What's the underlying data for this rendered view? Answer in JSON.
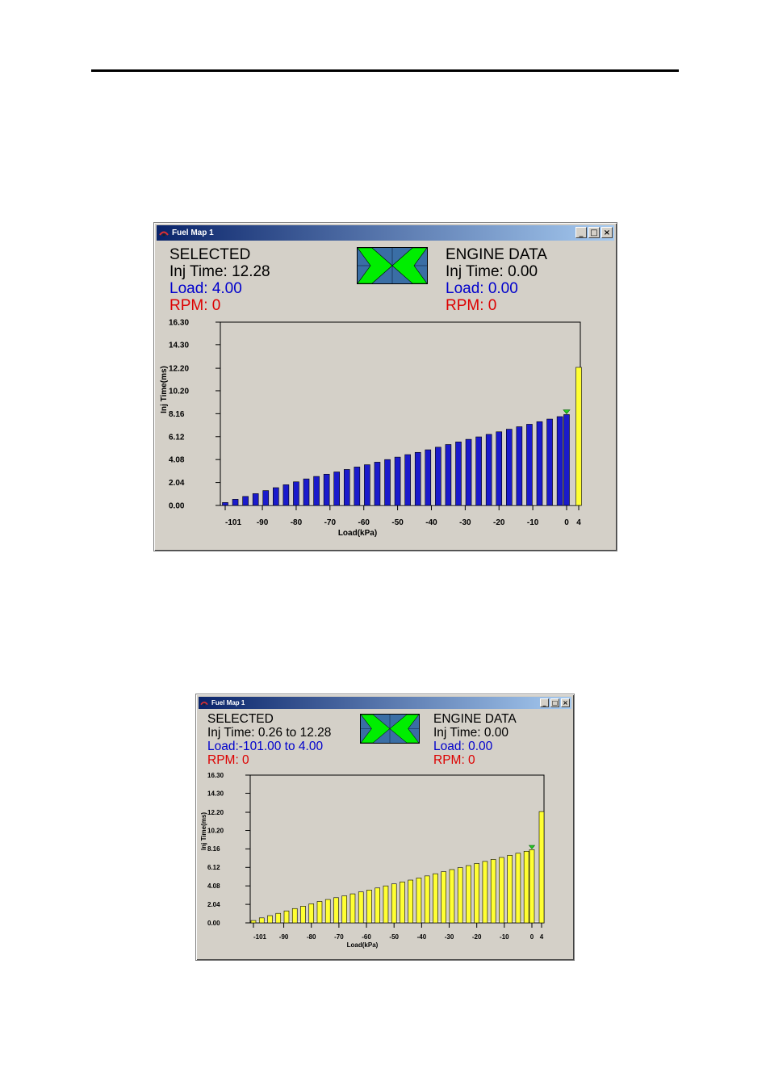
{
  "windows": [
    {
      "title": "Fuel Map 1",
      "selected": {
        "heading": "SELECTED",
        "inj_time": "Inj Time: 12.28",
        "load_label": "Load: ",
        "load_value": "4.00",
        "rpm": "RPM: 0"
      },
      "engine": {
        "heading": "ENGINE DATA",
        "inj_time": "Inj Time: 0.00",
        "load": "Load: 0.00",
        "rpm": "RPM: 0"
      },
      "bar_color": "#1a1acc",
      "selected_bar_color": "#ffff33"
    },
    {
      "title": "Fuel Map 1",
      "selected": {
        "heading": "SELECTED",
        "inj_time": "Inj Time: 0.26 to 12.28",
        "load_label": "Load:",
        "load_value": "-101.00 to 4.00",
        "rpm": "RPM: 0"
      },
      "engine": {
        "heading": "ENGINE DATA",
        "inj_time": "Inj Time: 0.00",
        "load": "Load: 0.00",
        "rpm": "RPM: 0"
      },
      "bar_color": "#ffff33",
      "selected_bar_color": "#ffff33"
    }
  ],
  "colors": {
    "engine_marker": "#22cc22",
    "nav_arrows": "#00ee00",
    "nav_bg": "#3a6ea5",
    "window_bg": "#d4d0c8",
    "titlebar_start": "#0a246a",
    "titlebar_end": "#a6caf0"
  },
  "controls": {
    "minimize": "_",
    "maximize": "□",
    "close": "×"
  },
  "icons": {
    "app": "fuel-map-app-icon",
    "nav": "direction-arrows-icon"
  },
  "chart_data": [
    {
      "type": "bar",
      "title": "",
      "xlabel": "Load(kPa)",
      "ylabel": "Inj Time(ms)",
      "ylim": [
        0,
        16.3
      ],
      "y_ticks": [
        "16.30",
        "14.30",
        "12.20",
        "10.20",
        "8.16",
        "6.12",
        "4.08",
        "2.04",
        "0.00"
      ],
      "x_ticks": [
        "-101",
        "-90",
        "-80",
        "-70",
        "-60",
        "-50",
        "-40",
        "-30",
        "-20",
        "-10",
        "0",
        "4"
      ],
      "x": [
        -101,
        -98,
        -95,
        -92,
        -89,
        -86,
        -83,
        -80,
        -77,
        -74,
        -71,
        -68,
        -65,
        -62,
        -59,
        -56,
        -53,
        -50,
        -47,
        -44,
        -41,
        -38,
        -35,
        -32,
        -29,
        -26,
        -23,
        -20,
        -17,
        -14,
        -11,
        -8,
        -5,
        -2,
        0,
        4
      ],
      "values": [
        0.26,
        0.55,
        0.8,
        1.05,
        1.32,
        1.58,
        1.84,
        2.1,
        2.36,
        2.58,
        2.78,
        2.98,
        3.2,
        3.42,
        3.62,
        3.85,
        4.08,
        4.3,
        4.52,
        4.72,
        4.95,
        5.18,
        5.42,
        5.65,
        5.88,
        6.1,
        6.32,
        6.55,
        6.78,
        7.0,
        7.22,
        7.45,
        7.68,
        7.9,
        8.08,
        12.28
      ],
      "selected_indices": [
        35
      ],
      "engine_marker_x": 0,
      "grid": false,
      "legend": "none"
    },
    {
      "type": "bar",
      "title": "",
      "xlabel": "Load(kPa)",
      "ylabel": "Inj Time(ms)",
      "ylim": [
        0,
        16.3
      ],
      "y_ticks": [
        "16.30",
        "14.30",
        "12.20",
        "10.20",
        "8.16",
        "6.12",
        "4.08",
        "2.04",
        "0.00"
      ],
      "x_ticks": [
        "-101",
        "-90",
        "-80",
        "-70",
        "-60",
        "-50",
        "-40",
        "-30",
        "-20",
        "-10",
        "0",
        "4"
      ],
      "x": [
        -101,
        -98,
        -95,
        -92,
        -89,
        -86,
        -83,
        -80,
        -77,
        -74,
        -71,
        -68,
        -65,
        -62,
        -59,
        -56,
        -53,
        -50,
        -47,
        -44,
        -41,
        -38,
        -35,
        -32,
        -29,
        -26,
        -23,
        -20,
        -17,
        -14,
        -11,
        -8,
        -5,
        -2,
        0,
        4
      ],
      "values": [
        0.26,
        0.55,
        0.8,
        1.05,
        1.32,
        1.58,
        1.84,
        2.1,
        2.36,
        2.58,
        2.78,
        2.98,
        3.2,
        3.42,
        3.62,
        3.85,
        4.08,
        4.3,
        4.52,
        4.72,
        4.95,
        5.18,
        5.42,
        5.65,
        5.88,
        6.1,
        6.32,
        6.55,
        6.78,
        7.0,
        7.22,
        7.45,
        7.68,
        7.9,
        8.08,
        12.28
      ],
      "selected_indices": [
        0,
        1,
        2,
        3,
        4,
        5,
        6,
        7,
        8,
        9,
        10,
        11,
        12,
        13,
        14,
        15,
        16,
        17,
        18,
        19,
        20,
        21,
        22,
        23,
        24,
        25,
        26,
        27,
        28,
        29,
        30,
        31,
        32,
        33,
        34,
        35
      ],
      "engine_marker_x": 0,
      "grid": false,
      "legend": "none"
    }
  ]
}
